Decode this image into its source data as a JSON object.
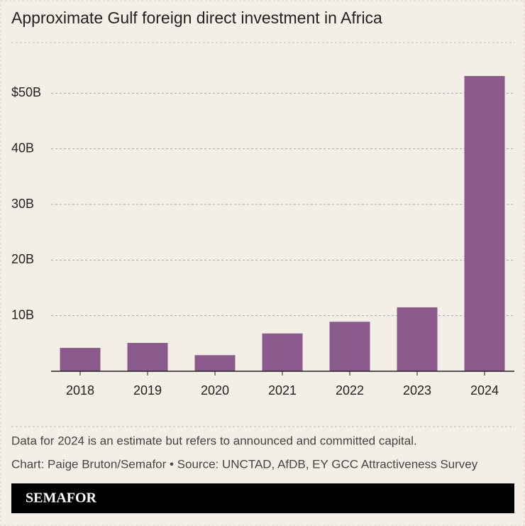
{
  "chart_data": {
    "type": "bar",
    "title": "Approximate Gulf foreign direct investment in Africa",
    "note": "Data for 2024 is an estimate but refers to announced and committed capital.",
    "credit": "Chart: Paige Bruton/Semafor • Source: UNCTAD, AfDB, EY GCC Attractiveness Survey",
    "brand": "SEMAFOR",
    "categories": [
      "2018",
      "2019",
      "2020",
      "2021",
      "2022",
      "2023",
      "2024"
    ],
    "values": [
      4.2,
      5.1,
      2.9,
      6.8,
      8.9,
      11.5,
      53.1
    ],
    "color": "#8a5a8c",
    "ylim": [
      0,
      60
    ],
    "yticks": [
      {
        "value": 10,
        "label": "10B"
      },
      {
        "value": 20,
        "label": "20B"
      },
      {
        "value": 30,
        "label": "30B"
      },
      {
        "value": 40,
        "label": "40B"
      },
      {
        "value": 50,
        "label": "$50B"
      }
    ],
    "grid": true
  }
}
